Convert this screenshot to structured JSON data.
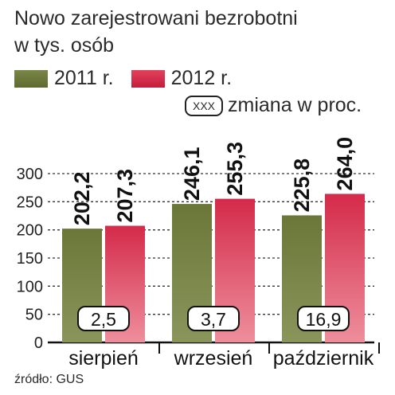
{
  "colors": {
    "series_2011": "#6e7a3c",
    "series_2012": "#d42a49",
    "axis": "#222222"
  },
  "header": {
    "title_line1": "Nowo zarejestrowani bezrobotni",
    "title_line2": "w tys. osób"
  },
  "legend": {
    "label_2011": "2011 r.",
    "label_2012": "2012 r.",
    "change_box": "XXX",
    "change_label": "zmiana w proc."
  },
  "source": "źródło: GUS",
  "chart_data": {
    "type": "bar",
    "categories": [
      "sierpień",
      "wrzesień",
      "październik"
    ],
    "series": [
      {
        "name": "2011 r.",
        "values": [
          202.2,
          246.1,
          225.8
        ],
        "labels": [
          "202,2",
          "246,1",
          "225,8"
        ]
      },
      {
        "name": "2012 r.",
        "values": [
          207.3,
          255.3,
          264.0
        ],
        "labels": [
          "207,3",
          "255,3",
          "264,0"
        ]
      }
    ],
    "change_percent": [
      "2,5",
      "3,7",
      "16,9"
    ],
    "yticks": [
      0,
      50,
      100,
      150,
      200,
      250,
      300
    ],
    "ylim": [
      0,
      300
    ],
    "grid": true,
    "legend_position": "top-left"
  }
}
